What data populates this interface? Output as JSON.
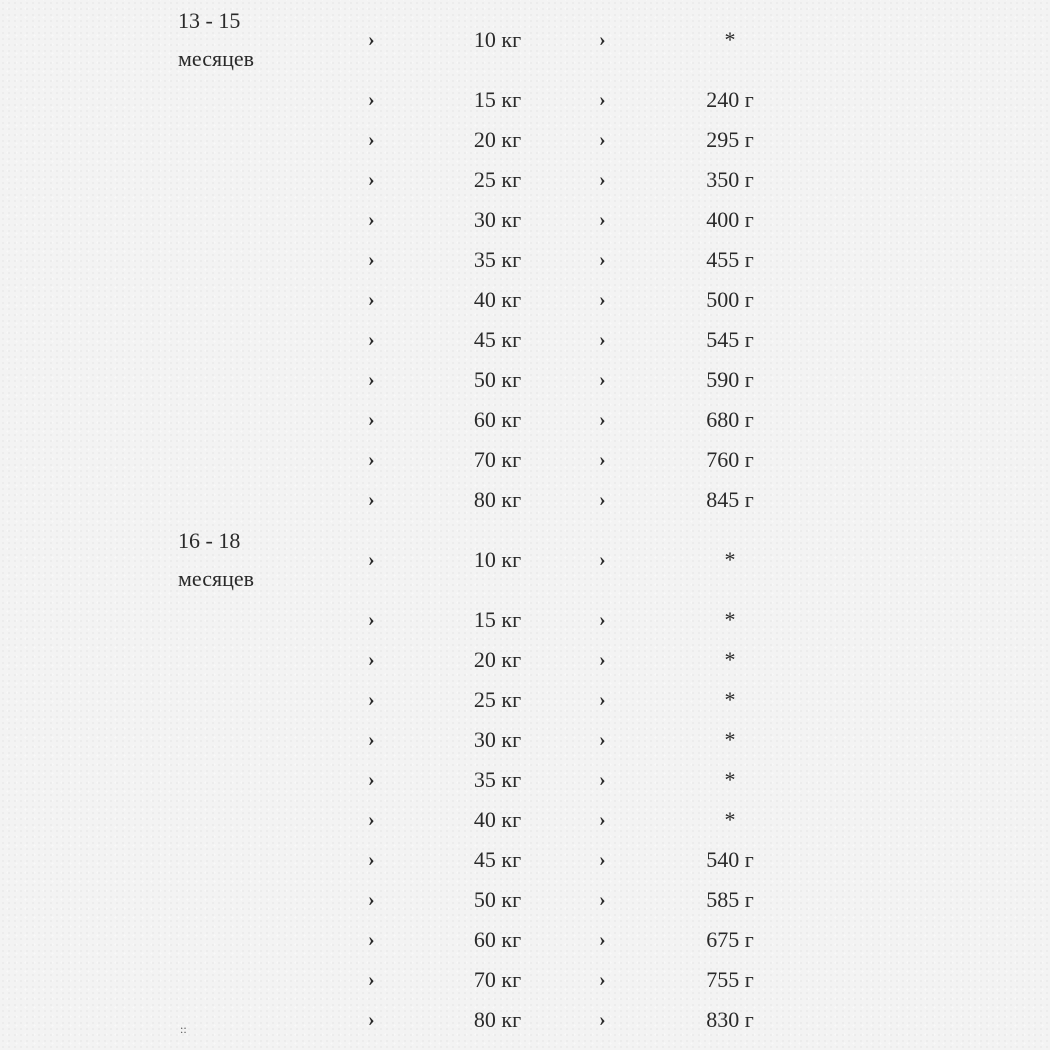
{
  "groups": [
    {
      "age": [
        "13 - 15",
        "месяцев"
      ],
      "rows": [
        [
          "10 кг",
          "*"
        ],
        [
          "15 кг",
          "240 г"
        ],
        [
          "20 кг",
          "295 г"
        ],
        [
          "25 кг",
          "350 г"
        ],
        [
          "30 кг",
          "400 г"
        ],
        [
          "35 кг",
          "455 г"
        ],
        [
          "40 кг",
          "500 г"
        ],
        [
          "45 кг",
          "545 г"
        ],
        [
          "50 кг",
          "590 г"
        ],
        [
          "60 кг",
          "680 г"
        ],
        [
          "70 кг",
          "760 г"
        ],
        [
          "80 кг",
          "845 г"
        ]
      ]
    },
    {
      "age": [
        "16 - 18",
        "месяцев"
      ],
      "rows": [
        [
          "10 кг",
          "*"
        ],
        [
          "15 кг",
          "*"
        ],
        [
          "20 кг",
          "*"
        ],
        [
          "25 кг",
          "*"
        ],
        [
          "30 кг",
          "*"
        ],
        [
          "35 кг",
          "*"
        ],
        [
          "40 кг",
          "*"
        ],
        [
          "45 кг",
          "540 г"
        ],
        [
          "50 кг",
          "585 г"
        ],
        [
          "60 кг",
          "675 г"
        ],
        [
          "70 кг",
          "755 г"
        ],
        [
          "80 кг",
          "830 г"
        ]
      ]
    }
  ],
  "arrow": "›",
  "tail_mark": "::"
}
